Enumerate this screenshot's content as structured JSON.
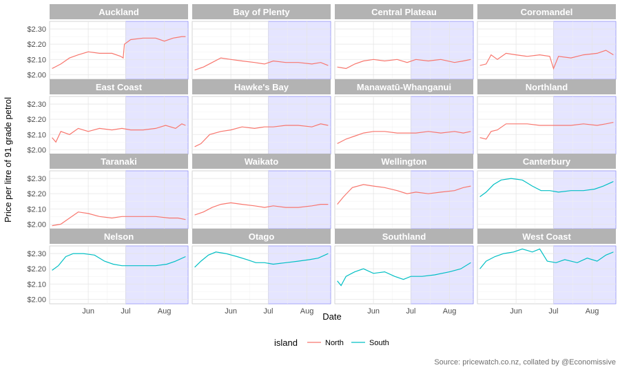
{
  "chart_data": {
    "type": "line",
    "ylabel": "Price per litre of 91 grade petrol",
    "xlabel": "Date",
    "caption": "Source: pricewatch.co.nz, collated by @Economissive",
    "legend": {
      "title": "island",
      "placement": "bottom",
      "entries": [
        {
          "label": "North",
          "color": "#F8766D"
        },
        {
          "label": "South",
          "color": "#00BFC4"
        }
      ]
    },
    "x_range": [
      "2017-05-01",
      "2017-08-20"
    ],
    "x_ticks": [
      {
        "date": "2017-06-01",
        "label": "Jun"
      },
      {
        "date": "2017-07-01",
        "label": "Jul"
      },
      {
        "date": "2017-08-01",
        "label": "Aug"
      }
    ],
    "shaded_region": {
      "from": "2017-07-01",
      "to": "2017-08-20",
      "color": "#e5e5ff"
    },
    "y_ticks": [
      {
        "value": 2.0,
        "label": "$2.00"
      },
      {
        "value": 2.1,
        "label": "$2.10"
      },
      {
        "value": 2.2,
        "label": "$2.20"
      },
      {
        "value": 2.3,
        "label": "$2.30"
      }
    ],
    "ylim": [
      1.97,
      2.35
    ],
    "grid": true,
    "panels": [
      {
        "region": "Auckland",
        "island": "North",
        "points": [
          [
            "2017-05-03",
            2.04
          ],
          [
            "2017-05-10",
            2.07
          ],
          [
            "2017-05-17",
            2.11
          ],
          [
            "2017-05-24",
            2.13
          ],
          [
            "2017-06-01",
            2.15
          ],
          [
            "2017-06-10",
            2.14
          ],
          [
            "2017-06-20",
            2.14
          ],
          [
            "2017-06-27",
            2.12
          ],
          [
            "2017-06-29",
            2.11
          ],
          [
            "2017-06-30",
            2.2
          ],
          [
            "2017-07-05",
            2.23
          ],
          [
            "2017-07-15",
            2.24
          ],
          [
            "2017-07-25",
            2.24
          ],
          [
            "2017-08-01",
            2.22
          ],
          [
            "2017-08-08",
            2.24
          ],
          [
            "2017-08-15",
            2.25
          ],
          [
            "2017-08-18",
            2.25
          ]
        ]
      },
      {
        "region": "Bay of Plenty",
        "island": "North",
        "points": [
          [
            "2017-05-03",
            2.03
          ],
          [
            "2017-05-10",
            2.05
          ],
          [
            "2017-05-17",
            2.08
          ],
          [
            "2017-05-24",
            2.11
          ],
          [
            "2017-06-01",
            2.1
          ],
          [
            "2017-06-10",
            2.09
          ],
          [
            "2017-06-20",
            2.08
          ],
          [
            "2017-06-28",
            2.07
          ],
          [
            "2017-07-05",
            2.09
          ],
          [
            "2017-07-15",
            2.08
          ],
          [
            "2017-07-25",
            2.08
          ],
          [
            "2017-08-05",
            2.07
          ],
          [
            "2017-08-12",
            2.08
          ],
          [
            "2017-08-18",
            2.06
          ]
        ]
      },
      {
        "region": "Central Plateau",
        "island": "North",
        "points": [
          [
            "2017-05-03",
            2.05
          ],
          [
            "2017-05-10",
            2.04
          ],
          [
            "2017-05-17",
            2.07
          ],
          [
            "2017-05-24",
            2.09
          ],
          [
            "2017-06-01",
            2.1
          ],
          [
            "2017-06-10",
            2.09
          ],
          [
            "2017-06-20",
            2.1
          ],
          [
            "2017-06-28",
            2.08
          ],
          [
            "2017-07-05",
            2.1
          ],
          [
            "2017-07-15",
            2.09
          ],
          [
            "2017-07-25",
            2.1
          ],
          [
            "2017-08-05",
            2.08
          ],
          [
            "2017-08-12",
            2.09
          ],
          [
            "2017-08-18",
            2.1
          ]
        ]
      },
      {
        "region": "Coromandel",
        "island": "North",
        "points": [
          [
            "2017-05-03",
            2.06
          ],
          [
            "2017-05-08",
            2.07
          ],
          [
            "2017-05-12",
            2.13
          ],
          [
            "2017-05-17",
            2.1
          ],
          [
            "2017-05-24",
            2.14
          ],
          [
            "2017-06-01",
            2.13
          ],
          [
            "2017-06-10",
            2.12
          ],
          [
            "2017-06-20",
            2.13
          ],
          [
            "2017-06-28",
            2.12
          ],
          [
            "2017-07-01",
            2.04
          ],
          [
            "2017-07-05",
            2.12
          ],
          [
            "2017-07-15",
            2.11
          ],
          [
            "2017-07-25",
            2.13
          ],
          [
            "2017-08-05",
            2.14
          ],
          [
            "2017-08-12",
            2.16
          ],
          [
            "2017-08-18",
            2.13
          ]
        ]
      },
      {
        "region": "East Coast",
        "island": "North",
        "points": [
          [
            "2017-05-03",
            2.08
          ],
          [
            "2017-05-06",
            2.05
          ],
          [
            "2017-05-10",
            2.12
          ],
          [
            "2017-05-17",
            2.1
          ],
          [
            "2017-05-24",
            2.14
          ],
          [
            "2017-06-01",
            2.12
          ],
          [
            "2017-06-10",
            2.14
          ],
          [
            "2017-06-20",
            2.13
          ],
          [
            "2017-06-28",
            2.14
          ],
          [
            "2017-07-05",
            2.13
          ],
          [
            "2017-07-15",
            2.13
          ],
          [
            "2017-07-25",
            2.14
          ],
          [
            "2017-08-02",
            2.16
          ],
          [
            "2017-08-10",
            2.14
          ],
          [
            "2017-08-15",
            2.17
          ],
          [
            "2017-08-18",
            2.16
          ]
        ]
      },
      {
        "region": "Hawke's Bay",
        "island": "North",
        "points": [
          [
            "2017-05-03",
            2.02
          ],
          [
            "2017-05-08",
            2.04
          ],
          [
            "2017-05-15",
            2.1
          ],
          [
            "2017-05-24",
            2.12
          ],
          [
            "2017-06-01",
            2.13
          ],
          [
            "2017-06-10",
            2.15
          ],
          [
            "2017-06-20",
            2.14
          ],
          [
            "2017-06-28",
            2.15
          ],
          [
            "2017-07-05",
            2.15
          ],
          [
            "2017-07-15",
            2.16
          ],
          [
            "2017-07-25",
            2.16
          ],
          [
            "2017-08-05",
            2.15
          ],
          [
            "2017-08-12",
            2.17
          ],
          [
            "2017-08-18",
            2.16
          ]
        ]
      },
      {
        "region": "Manawatū-Whanganui",
        "island": "North",
        "points": [
          [
            "2017-05-03",
            2.04
          ],
          [
            "2017-05-10",
            2.07
          ],
          [
            "2017-05-17",
            2.09
          ],
          [
            "2017-05-24",
            2.11
          ],
          [
            "2017-06-01",
            2.12
          ],
          [
            "2017-06-10",
            2.12
          ],
          [
            "2017-06-20",
            2.11
          ],
          [
            "2017-06-28",
            2.11
          ],
          [
            "2017-07-05",
            2.11
          ],
          [
            "2017-07-15",
            2.12
          ],
          [
            "2017-07-25",
            2.11
          ],
          [
            "2017-08-05",
            2.12
          ],
          [
            "2017-08-12",
            2.11
          ],
          [
            "2017-08-18",
            2.12
          ]
        ]
      },
      {
        "region": "Northland",
        "island": "North",
        "points": [
          [
            "2017-05-03",
            2.08
          ],
          [
            "2017-05-08",
            2.07
          ],
          [
            "2017-05-12",
            2.12
          ],
          [
            "2017-05-17",
            2.13
          ],
          [
            "2017-05-24",
            2.17
          ],
          [
            "2017-06-01",
            2.17
          ],
          [
            "2017-06-10",
            2.17
          ],
          [
            "2017-06-20",
            2.16
          ],
          [
            "2017-06-28",
            2.16
          ],
          [
            "2017-07-05",
            2.16
          ],
          [
            "2017-07-15",
            2.16
          ],
          [
            "2017-07-25",
            2.17
          ],
          [
            "2017-08-05",
            2.16
          ],
          [
            "2017-08-12",
            2.17
          ],
          [
            "2017-08-18",
            2.18
          ]
        ]
      },
      {
        "region": "Taranaki",
        "island": "North",
        "points": [
          [
            "2017-05-03",
            1.99
          ],
          [
            "2017-05-10",
            2.0
          ],
          [
            "2017-05-17",
            2.04
          ],
          [
            "2017-05-24",
            2.08
          ],
          [
            "2017-06-01",
            2.07
          ],
          [
            "2017-06-10",
            2.05
          ],
          [
            "2017-06-20",
            2.04
          ],
          [
            "2017-06-28",
            2.05
          ],
          [
            "2017-07-05",
            2.05
          ],
          [
            "2017-07-15",
            2.05
          ],
          [
            "2017-07-25",
            2.05
          ],
          [
            "2017-08-05",
            2.04
          ],
          [
            "2017-08-12",
            2.04
          ],
          [
            "2017-08-18",
            2.03
          ]
        ]
      },
      {
        "region": "Waikato",
        "island": "North",
        "points": [
          [
            "2017-05-03",
            2.06
          ],
          [
            "2017-05-10",
            2.08
          ],
          [
            "2017-05-17",
            2.11
          ],
          [
            "2017-05-24",
            2.13
          ],
          [
            "2017-06-01",
            2.14
          ],
          [
            "2017-06-10",
            2.13
          ],
          [
            "2017-06-20",
            2.12
          ],
          [
            "2017-06-28",
            2.11
          ],
          [
            "2017-07-05",
            2.12
          ],
          [
            "2017-07-15",
            2.11
          ],
          [
            "2017-07-25",
            2.11
          ],
          [
            "2017-08-05",
            2.12
          ],
          [
            "2017-08-12",
            2.13
          ],
          [
            "2017-08-18",
            2.13
          ]
        ]
      },
      {
        "region": "Wellington",
        "island": "North",
        "points": [
          [
            "2017-05-03",
            2.13
          ],
          [
            "2017-05-08",
            2.18
          ],
          [
            "2017-05-15",
            2.24
          ],
          [
            "2017-05-24",
            2.26
          ],
          [
            "2017-06-01",
            2.25
          ],
          [
            "2017-06-10",
            2.24
          ],
          [
            "2017-06-20",
            2.22
          ],
          [
            "2017-06-28",
            2.2
          ],
          [
            "2017-07-05",
            2.21
          ],
          [
            "2017-07-15",
            2.2
          ],
          [
            "2017-07-25",
            2.21
          ],
          [
            "2017-08-05",
            2.22
          ],
          [
            "2017-08-12",
            2.24
          ],
          [
            "2017-08-18",
            2.25
          ]
        ]
      },
      {
        "region": "Canterbury",
        "island": "South",
        "points": [
          [
            "2017-05-03",
            2.18
          ],
          [
            "2017-05-08",
            2.21
          ],
          [
            "2017-05-14",
            2.26
          ],
          [
            "2017-05-20",
            2.29
          ],
          [
            "2017-05-28",
            2.3
          ],
          [
            "2017-06-06",
            2.29
          ],
          [
            "2017-06-14",
            2.25
          ],
          [
            "2017-06-21",
            2.22
          ],
          [
            "2017-06-28",
            2.22
          ],
          [
            "2017-07-05",
            2.21
          ],
          [
            "2017-07-15",
            2.22
          ],
          [
            "2017-07-25",
            2.22
          ],
          [
            "2017-08-03",
            2.23
          ],
          [
            "2017-08-10",
            2.25
          ],
          [
            "2017-08-18",
            2.28
          ]
        ]
      },
      {
        "region": "Nelson",
        "island": "South",
        "points": [
          [
            "2017-05-03",
            2.19
          ],
          [
            "2017-05-08",
            2.22
          ],
          [
            "2017-05-14",
            2.28
          ],
          [
            "2017-05-20",
            2.3
          ],
          [
            "2017-05-28",
            2.3
          ],
          [
            "2017-06-06",
            2.29
          ],
          [
            "2017-06-14",
            2.25
          ],
          [
            "2017-06-21",
            2.23
          ],
          [
            "2017-06-28",
            2.22
          ],
          [
            "2017-07-05",
            2.22
          ],
          [
            "2017-07-15",
            2.22
          ],
          [
            "2017-07-25",
            2.22
          ],
          [
            "2017-08-03",
            2.23
          ],
          [
            "2017-08-10",
            2.25
          ],
          [
            "2017-08-18",
            2.28
          ]
        ]
      },
      {
        "region": "Otago",
        "island": "South",
        "points": [
          [
            "2017-05-03",
            2.21
          ],
          [
            "2017-05-08",
            2.25
          ],
          [
            "2017-05-14",
            2.29
          ],
          [
            "2017-05-20",
            2.31
          ],
          [
            "2017-05-28",
            2.3
          ],
          [
            "2017-06-06",
            2.28
          ],
          [
            "2017-06-14",
            2.26
          ],
          [
            "2017-06-21",
            2.24
          ],
          [
            "2017-06-28",
            2.24
          ],
          [
            "2017-07-05",
            2.23
          ],
          [
            "2017-07-15",
            2.24
          ],
          [
            "2017-07-25",
            2.25
          ],
          [
            "2017-08-03",
            2.26
          ],
          [
            "2017-08-10",
            2.27
          ],
          [
            "2017-08-18",
            2.3
          ]
        ]
      },
      {
        "region": "Southland",
        "island": "South",
        "points": [
          [
            "2017-05-03",
            2.12
          ],
          [
            "2017-05-06",
            2.09
          ],
          [
            "2017-05-10",
            2.15
          ],
          [
            "2017-05-17",
            2.18
          ],
          [
            "2017-05-24",
            2.2
          ],
          [
            "2017-06-01",
            2.17
          ],
          [
            "2017-06-10",
            2.18
          ],
          [
            "2017-06-18",
            2.15
          ],
          [
            "2017-06-25",
            2.13
          ],
          [
            "2017-07-01",
            2.15
          ],
          [
            "2017-07-10",
            2.15
          ],
          [
            "2017-07-20",
            2.16
          ],
          [
            "2017-08-01",
            2.18
          ],
          [
            "2017-08-10",
            2.2
          ],
          [
            "2017-08-18",
            2.24
          ]
        ]
      },
      {
        "region": "West Coast",
        "island": "South",
        "points": [
          [
            "2017-05-03",
            2.2
          ],
          [
            "2017-05-08",
            2.25
          ],
          [
            "2017-05-15",
            2.28
          ],
          [
            "2017-05-22",
            2.3
          ],
          [
            "2017-05-30",
            2.31
          ],
          [
            "2017-06-06",
            2.33
          ],
          [
            "2017-06-14",
            2.31
          ],
          [
            "2017-06-20",
            2.33
          ],
          [
            "2017-06-26",
            2.25
          ],
          [
            "2017-07-03",
            2.24
          ],
          [
            "2017-07-10",
            2.26
          ],
          [
            "2017-07-20",
            2.24
          ],
          [
            "2017-07-28",
            2.27
          ],
          [
            "2017-08-05",
            2.25
          ],
          [
            "2017-08-12",
            2.29
          ],
          [
            "2017-08-18",
            2.31
          ]
        ]
      }
    ]
  }
}
